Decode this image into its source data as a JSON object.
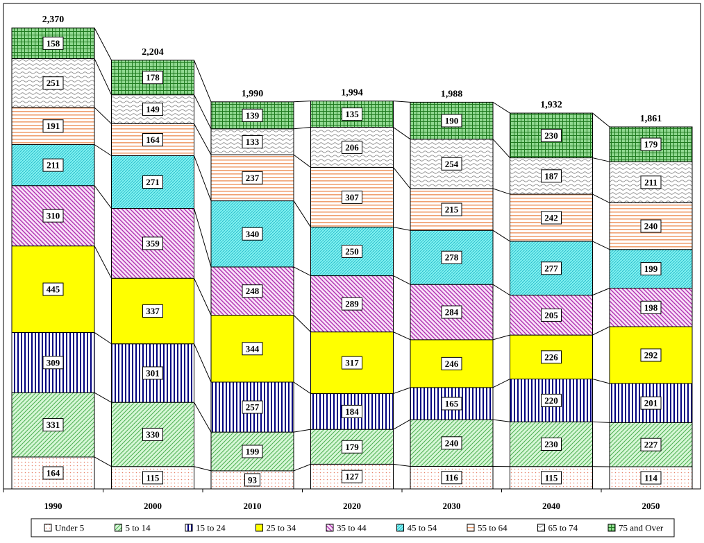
{
  "chart_data": {
    "type": "bar",
    "stacked": true,
    "title": "",
    "xlabel": "",
    "ylabel": "",
    "ylim": [
      0,
      2600
    ],
    "grid": false,
    "legend_position": "bottom",
    "connector_lines": true,
    "categories": [
      "1990",
      "2000",
      "2010",
      "2020",
      "2030",
      "2040",
      "2050"
    ],
    "totals": [
      "2,370",
      "2,204",
      "1,990",
      "1,994",
      "1,988",
      "1,932",
      "1,861"
    ],
    "series": [
      {
        "name": "Under 5",
        "color": "#ffd8c8",
        "pattern": "dots",
        "values": [
          164,
          115,
          93,
          127,
          116,
          115,
          114
        ]
      },
      {
        "name": "5 to 14",
        "color": "#b8f0b8",
        "pattern": "diag-right",
        "values": [
          331,
          330,
          199,
          179,
          240,
          230,
          227
        ]
      },
      {
        "name": "15 to 24",
        "color": "#000080",
        "pattern": "vertical",
        "values": [
          309,
          301,
          257,
          184,
          165,
          220,
          201
        ]
      },
      {
        "name": "25 to 34",
        "color": "#ffff00",
        "pattern": "solid",
        "values": [
          445,
          337,
          344,
          317,
          246,
          226,
          292
        ]
      },
      {
        "name": "35 to 44",
        "color": "#cc44cc",
        "pattern": "diag-left",
        "values": [
          310,
          359,
          248,
          289,
          284,
          205,
          198
        ]
      },
      {
        "name": "45 to 54",
        "color": "#40e0e0",
        "pattern": "diag-fine",
        "values": [
          211,
          271,
          340,
          250,
          278,
          277,
          199
        ]
      },
      {
        "name": "55 to 64",
        "color": "#f4a460",
        "pattern": "horizontal",
        "values": [
          191,
          164,
          237,
          307,
          215,
          242,
          240
        ]
      },
      {
        "name": "65 to 74",
        "color": "#b0b0b0",
        "pattern": "waves",
        "values": [
          251,
          149,
          133,
          206,
          254,
          187,
          211
        ]
      },
      {
        "name": "75 and Over",
        "color": "#228b22",
        "pattern": "grid",
        "values": [
          158,
          178,
          139,
          135,
          190,
          230,
          179
        ]
      }
    ]
  }
}
